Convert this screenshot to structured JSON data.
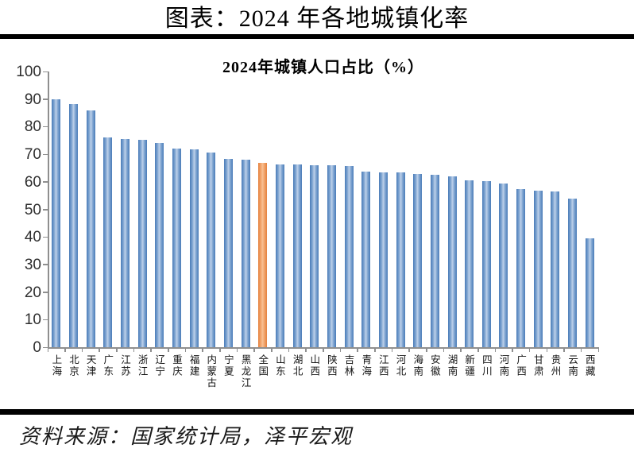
{
  "header": {
    "title": "图表：2024 年各地城镇化率"
  },
  "footer": {
    "source": "资料来源：国家统计局，泽平宏观"
  },
  "chart_data": {
    "type": "bar",
    "title": "2024年城镇人口占比（%）",
    "categories": [
      "上海",
      "北京",
      "天津",
      "广东",
      "江苏",
      "浙江",
      "辽宁",
      "重庆",
      "福建",
      "内蒙古",
      "宁夏",
      "黑龙江",
      "全国",
      "山东",
      "湖北",
      "山西",
      "陕西",
      "吉林",
      "青海",
      "江西",
      "河北",
      "海南",
      "安徽",
      "湖南",
      "新疆",
      "四川",
      "河南",
      "广西",
      "甘肃",
      "贵州",
      "云南",
      "西藏"
    ],
    "values": [
      89.8,
      88.1,
      85.9,
      76.0,
      75.5,
      75.3,
      74.1,
      72.1,
      71.8,
      70.6,
      68.2,
      67.9,
      67.0,
      66.4,
      66.2,
      66.1,
      66.0,
      65.7,
      63.7,
      63.5,
      63.3,
      62.9,
      62.4,
      61.9,
      60.4,
      60.1,
      59.3,
      57.3,
      56.8,
      56.6,
      54.0,
      39.6
    ],
    "highlight_category": "全国",
    "highlight_index": 12,
    "xlabel": "",
    "ylabel": "",
    "ylim": [
      0,
      100
    ],
    "ytick_step": 10,
    "grid": false,
    "legend": "none",
    "colors": {
      "bar_edge": "#4a7cb8",
      "bar_mid": "#7da3d0",
      "bar_center": "#bed1ea",
      "highlight_edge": "#e5813e",
      "highlight_mid": "#f0a369",
      "highlight_center": "#f9c193",
      "axis": "#8f8f8f",
      "rule": "#000000"
    }
  }
}
